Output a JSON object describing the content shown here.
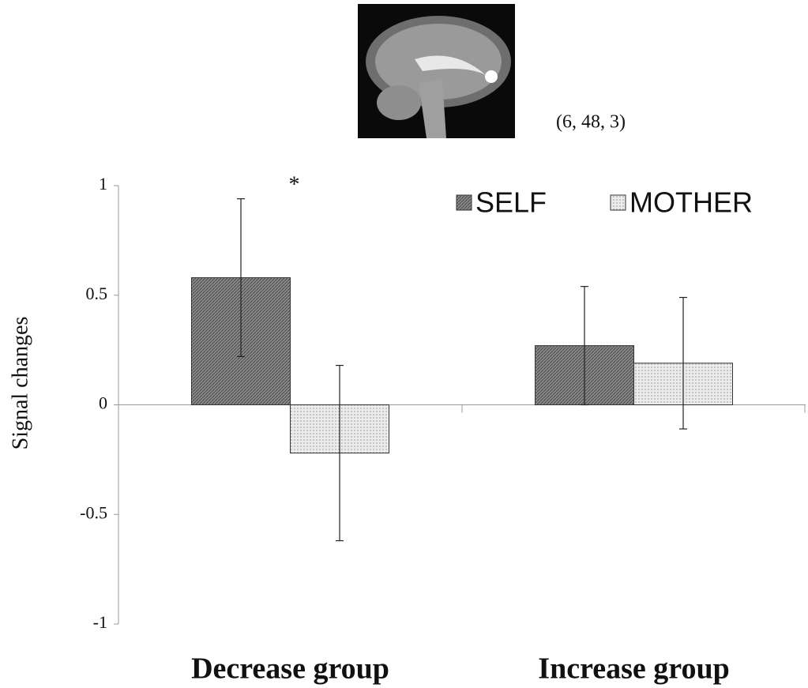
{
  "chart_data": {
    "type": "bar",
    "image_caption": "(6, 48, 3)",
    "significance_marker": "*",
    "y_label": "Signal changes",
    "categories": [
      "Decrease group",
      "Increase group"
    ],
    "series": [
      {
        "name": "SELF",
        "color": "#8a8a8a",
        "values": [
          0.58,
          0.27
        ],
        "errors": [
          0.36,
          0.27
        ]
      },
      {
        "name": "MOTHER",
        "color": "#ececec",
        "values": [
          -0.22,
          0.19
        ],
        "errors": [
          0.4,
          0.3
        ]
      }
    ],
    "ylim": [
      -1,
      1
    ],
    "yticks": [
      -1,
      -0.5,
      0,
      0.5,
      1
    ],
    "legend": "upper right"
  }
}
